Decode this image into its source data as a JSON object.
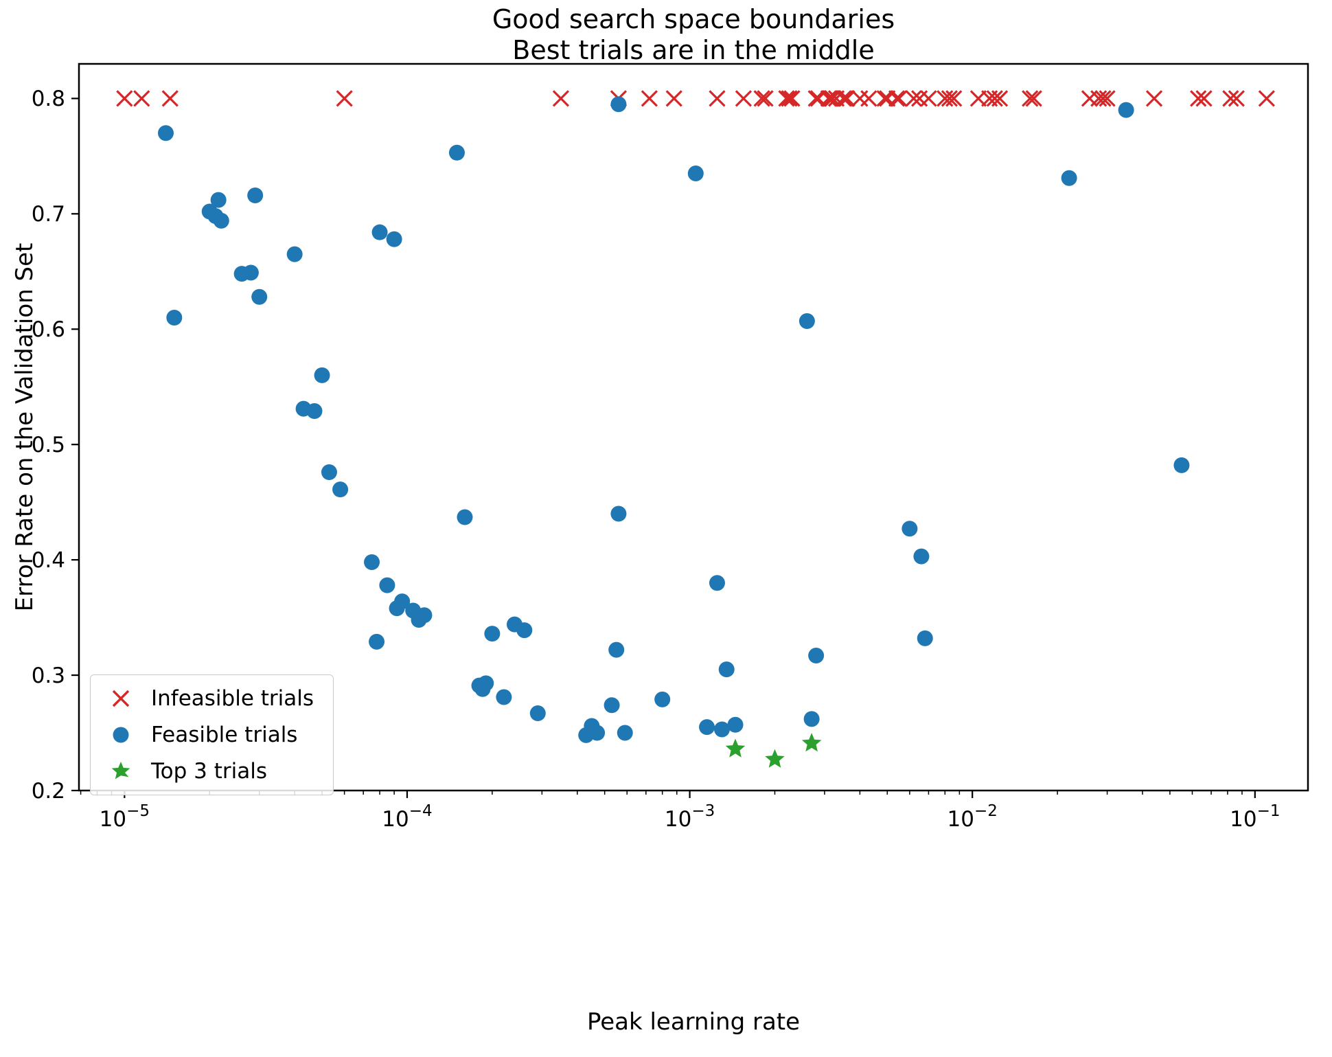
{
  "title": {
    "line1": "Good search space boundaries",
    "line2": "Best trials are in the middle"
  },
  "axes": {
    "xlabel": "Peak learning rate",
    "ylabel": "Error Rate on the Validation Set"
  },
  "legend": {
    "entries": [
      {
        "label": "Infeasible trials",
        "marker": "x",
        "color": "#d62728"
      },
      {
        "label": "Feasible trials",
        "marker": "circle",
        "color": "#1f77b4"
      },
      {
        "label": "Top 3 trials",
        "marker": "star",
        "color": "#2ca02c"
      }
    ]
  },
  "chart_data": {
    "type": "scatter",
    "title": "Good search space boundaries\nBest trials are in the middle",
    "xlabel": "Peak learning rate",
    "ylabel": "Error Rate on the Validation Set",
    "x_scale": "log",
    "y_scale": "linear",
    "xlim": [
      6.9e-06,
      0.154
    ],
    "ylim": [
      0.2,
      0.83
    ],
    "grid": false,
    "legend_position": "lower left",
    "x_ticks": [
      {
        "base": "10",
        "exp": "−5",
        "value": 1e-05
      },
      {
        "base": "10",
        "exp": "−4",
        "value": 0.0001
      },
      {
        "base": "10",
        "exp": "−3",
        "value": 0.001
      },
      {
        "base": "10",
        "exp": "−2",
        "value": 0.01
      },
      {
        "base": "10",
        "exp": "−1",
        "value": 0.1
      }
    ],
    "y_ticks": [
      {
        "label": "0.2",
        "value": 0.2
      },
      {
        "label": "0.3",
        "value": 0.3
      },
      {
        "label": "0.4",
        "value": 0.4
      },
      {
        "label": "0.5",
        "value": 0.5
      },
      {
        "label": "0.6",
        "value": 0.6
      },
      {
        "label": "0.7",
        "value": 0.7
      },
      {
        "label": "0.8",
        "value": 0.8
      }
    ],
    "series": [
      {
        "name": "Infeasible trials",
        "marker": "x",
        "color": "#d62728",
        "points": [
          [
            1e-05,
            0.8
          ],
          [
            1.15e-05,
            0.8
          ],
          [
            1.45e-05,
            0.8
          ],
          [
            6e-05,
            0.8
          ],
          [
            0.00035,
            0.8
          ],
          [
            0.00056,
            0.8
          ],
          [
            0.00072,
            0.8
          ],
          [
            0.00088,
            0.8
          ],
          [
            0.00125,
            0.8
          ],
          [
            0.00155,
            0.8
          ],
          [
            0.0018,
            0.8
          ],
          [
            0.00185,
            0.8
          ],
          [
            0.0022,
            0.8
          ],
          [
            0.00225,
            0.8
          ],
          [
            0.0023,
            0.8
          ],
          [
            0.0028,
            0.8
          ],
          [
            0.00285,
            0.8
          ],
          [
            0.0031,
            0.8
          ],
          [
            0.00315,
            0.8
          ],
          [
            0.0032,
            0.8
          ],
          [
            0.0033,
            0.8
          ],
          [
            0.0035,
            0.8
          ],
          [
            0.00355,
            0.8
          ],
          [
            0.0036,
            0.8
          ],
          [
            0.004,
            0.8
          ],
          [
            0.0043,
            0.8
          ],
          [
            0.0049,
            0.8
          ],
          [
            0.005,
            0.8
          ],
          [
            0.0054,
            0.8
          ],
          [
            0.0055,
            0.8
          ],
          [
            0.0062,
            0.8
          ],
          [
            0.0065,
            0.8
          ],
          [
            0.007,
            0.8
          ],
          [
            0.008,
            0.8
          ],
          [
            0.0083,
            0.8
          ],
          [
            0.0086,
            0.8
          ],
          [
            0.0105,
            0.8
          ],
          [
            0.0115,
            0.8
          ],
          [
            0.012,
            0.8
          ],
          [
            0.0125,
            0.8
          ],
          [
            0.016,
            0.8
          ],
          [
            0.0165,
            0.8
          ],
          [
            0.026,
            0.8
          ],
          [
            0.028,
            0.8
          ],
          [
            0.029,
            0.8
          ],
          [
            0.03,
            0.8
          ],
          [
            0.044,
            0.8
          ],
          [
            0.063,
            0.8
          ],
          [
            0.066,
            0.8
          ],
          [
            0.082,
            0.8
          ],
          [
            0.086,
            0.8
          ],
          [
            0.11,
            0.8
          ]
        ]
      },
      {
        "name": "Feasible trials",
        "marker": "circle",
        "color": "#1f77b4",
        "points": [
          [
            1.4e-05,
            0.77
          ],
          [
            1.5e-05,
            0.61
          ],
          [
            2e-05,
            0.702
          ],
          [
            2.1e-05,
            0.698
          ],
          [
            2.15e-05,
            0.712
          ],
          [
            2.2e-05,
            0.694
          ],
          [
            2.6e-05,
            0.648
          ],
          [
            2.8e-05,
            0.649
          ],
          [
            2.9e-05,
            0.716
          ],
          [
            3e-05,
            0.628
          ],
          [
            4e-05,
            0.665
          ],
          [
            4.3e-05,
            0.531
          ],
          [
            4.7e-05,
            0.529
          ],
          [
            5e-05,
            0.56
          ],
          [
            5.3e-05,
            0.476
          ],
          [
            5.8e-05,
            0.461
          ],
          [
            8e-05,
            0.684
          ],
          [
            9e-05,
            0.678
          ],
          [
            7.5e-05,
            0.398
          ],
          [
            7.8e-05,
            0.329
          ],
          [
            8.5e-05,
            0.378
          ],
          [
            9.2e-05,
            0.358
          ],
          [
            9.6e-05,
            0.364
          ],
          [
            0.000105,
            0.356
          ],
          [
            0.00011,
            0.348
          ],
          [
            0.000115,
            0.352
          ],
          [
            0.00015,
            0.753
          ],
          [
            0.00016,
            0.437
          ],
          [
            0.00018,
            0.291
          ],
          [
            0.000185,
            0.288
          ],
          [
            0.00019,
            0.293
          ],
          [
            0.0002,
            0.336
          ],
          [
            0.00022,
            0.281
          ],
          [
            0.00024,
            0.344
          ],
          [
            0.00026,
            0.339
          ],
          [
            0.00029,
            0.267
          ],
          [
            0.00043,
            0.248
          ],
          [
            0.00045,
            0.256
          ],
          [
            0.00047,
            0.25
          ],
          [
            0.00053,
            0.274
          ],
          [
            0.00055,
            0.322
          ],
          [
            0.00056,
            0.44
          ],
          [
            0.00056,
            0.795
          ],
          [
            0.00059,
            0.25
          ],
          [
            0.0008,
            0.279
          ],
          [
            0.00105,
            0.735
          ],
          [
            0.00115,
            0.255
          ],
          [
            0.00125,
            0.38
          ],
          [
            0.0013,
            0.253
          ],
          [
            0.00135,
            0.305
          ],
          [
            0.00145,
            0.257
          ],
          [
            0.0026,
            0.607
          ],
          [
            0.0027,
            0.262
          ],
          [
            0.0028,
            0.317
          ],
          [
            0.006,
            0.427
          ],
          [
            0.0066,
            0.403
          ],
          [
            0.0068,
            0.332
          ],
          [
            0.022,
            0.731
          ],
          [
            0.035,
            0.79
          ],
          [
            0.055,
            0.482
          ]
        ]
      },
      {
        "name": "Top 3 trials",
        "marker": "star",
        "color": "#2ca02c",
        "points": [
          [
            0.00145,
            0.236
          ],
          [
            0.002,
            0.227
          ],
          [
            0.0027,
            0.241
          ]
        ]
      }
    ]
  }
}
